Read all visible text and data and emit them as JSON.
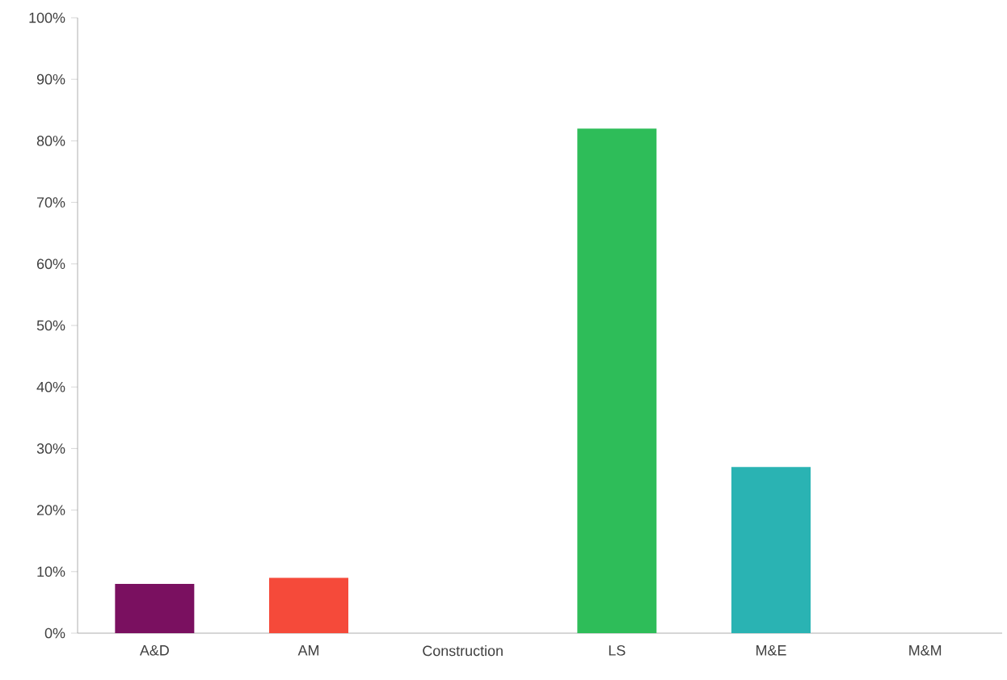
{
  "chart_data": {
    "type": "bar",
    "categories": [
      "A&D",
      "AM",
      "Construction",
      "LS",
      "M&E",
      "M&M"
    ],
    "values": [
      8,
      9,
      0,
      82,
      27,
      0
    ],
    "colors": [
      "#7a1060",
      "#f54a3a",
      "#2ebd59",
      "#2ebd59",
      "#2ab3b3",
      "#2ab3b3"
    ],
    "ylim": [
      0,
      100
    ],
    "yticks": [
      {
        "value": 0,
        "label": "0%"
      },
      {
        "value": 10,
        "label": "10%"
      },
      {
        "value": 20,
        "label": "20%"
      },
      {
        "value": 30,
        "label": "30%"
      },
      {
        "value": 40,
        "label": "40%"
      },
      {
        "value": 50,
        "label": "50%"
      },
      {
        "value": 60,
        "label": "60%"
      },
      {
        "value": 70,
        "label": "70%"
      },
      {
        "value": 80,
        "label": "80%"
      },
      {
        "value": 90,
        "label": "90%"
      },
      {
        "value": 100,
        "label": "100%"
      }
    ]
  }
}
